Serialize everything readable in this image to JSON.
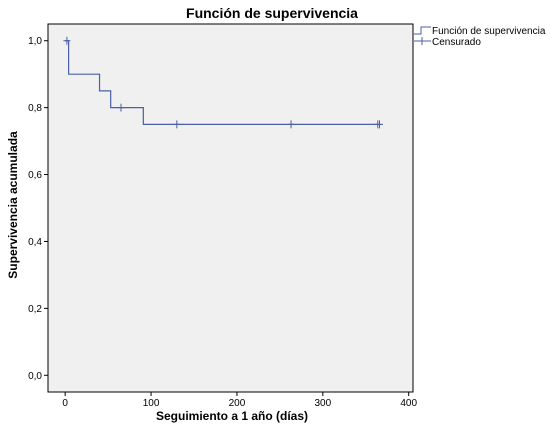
{
  "chart_data": {
    "type": "line",
    "title": "Función de supervivencia",
    "xlabel": "Seguimiento a 1 año (días)",
    "ylabel": "Supervivencia acumulada",
    "xlim": [
      -20,
      405
    ],
    "ylim": [
      -0.05,
      1.05
    ],
    "x_ticks": [
      0,
      100,
      200,
      300,
      400
    ],
    "x_tick_labels": [
      "0",
      "100",
      "200",
      "300",
      "400"
    ],
    "y_ticks": [
      0.0,
      0.2,
      0.4,
      0.6,
      0.8,
      1.0
    ],
    "y_tick_labels": [
      "0,0",
      "0,2",
      "0,4",
      "0,6",
      "0,8",
      "1,0"
    ],
    "grid": false,
    "legend_position": "top-right",
    "plot_background": "#f0f0f0",
    "line_color": "#4a5fa5",
    "series": [
      {
        "name": "Función de supervivencia",
        "style": "step",
        "points": [
          {
            "x": 0,
            "y": 1.0
          },
          {
            "x": 4,
            "y": 1.0
          },
          {
            "x": 4,
            "y": 0.9
          },
          {
            "x": 40,
            "y": 0.9
          },
          {
            "x": 40,
            "y": 0.85
          },
          {
            "x": 53,
            "y": 0.85
          },
          {
            "x": 53,
            "y": 0.8
          },
          {
            "x": 91,
            "y": 0.8
          },
          {
            "x": 91,
            "y": 0.75
          },
          {
            "x": 365,
            "y": 0.75
          }
        ]
      },
      {
        "name": "Censurado",
        "style": "marker",
        "marker": "+",
        "points": [
          {
            "x": 2,
            "y": 1.0
          },
          {
            "x": 65,
            "y": 0.8
          },
          {
            "x": 130,
            "y": 0.75
          },
          {
            "x": 263,
            "y": 0.75
          },
          {
            "x": 364,
            "y": 0.75
          },
          {
            "x": 366,
            "y": 0.75
          }
        ]
      }
    ]
  }
}
